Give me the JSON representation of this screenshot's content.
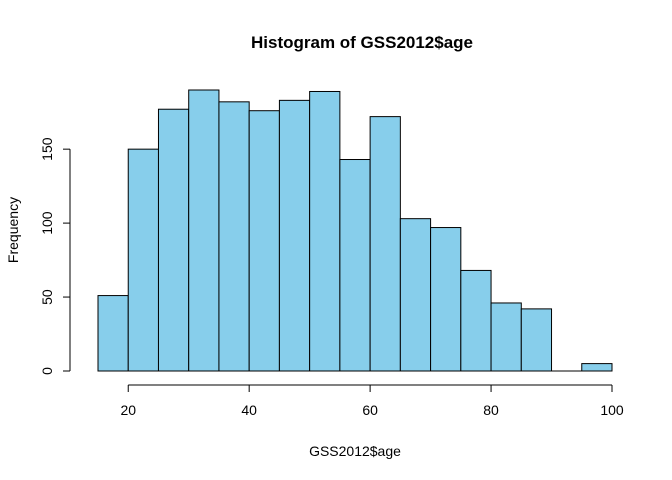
{
  "chart_data": {
    "type": "bar",
    "title": "Histogram of GSS2012$age",
    "xlabel": "GSS2012$age",
    "ylabel": "Frequency",
    "bin_width": 5,
    "bins": [
      {
        "x0": 15,
        "x1": 20,
        "count": 51
      },
      {
        "x0": 20,
        "x1": 25,
        "count": 150
      },
      {
        "x0": 25,
        "x1": 30,
        "count": 177
      },
      {
        "x0": 30,
        "x1": 35,
        "count": 190
      },
      {
        "x0": 35,
        "x1": 40,
        "count": 182
      },
      {
        "x0": 40,
        "x1": 45,
        "count": 176
      },
      {
        "x0": 45,
        "x1": 50,
        "count": 183
      },
      {
        "x0": 50,
        "x1": 55,
        "count": 189
      },
      {
        "x0": 55,
        "x1": 60,
        "count": 143
      },
      {
        "x0": 60,
        "x1": 65,
        "count": 172
      },
      {
        "x0": 65,
        "x1": 70,
        "count": 103
      },
      {
        "x0": 70,
        "x1": 75,
        "count": 97
      },
      {
        "x0": 75,
        "x1": 80,
        "count": 68
      },
      {
        "x0": 80,
        "x1": 85,
        "count": 46
      },
      {
        "x0": 85,
        "x1": 90,
        "count": 42
      },
      {
        "x0": 90,
        "x1": 95,
        "count": 0
      },
      {
        "x0": 95,
        "x1": 100,
        "count": 5
      }
    ],
    "xlim": [
      15,
      100
    ],
    "ylim": [
      0,
      190
    ],
    "x_ticks": [
      20,
      40,
      60,
      80,
      100
    ],
    "y_ticks": [
      0,
      50,
      100,
      150
    ],
    "grid": false,
    "bar_color": "#87ceeb",
    "edge_color": "#000000"
  }
}
